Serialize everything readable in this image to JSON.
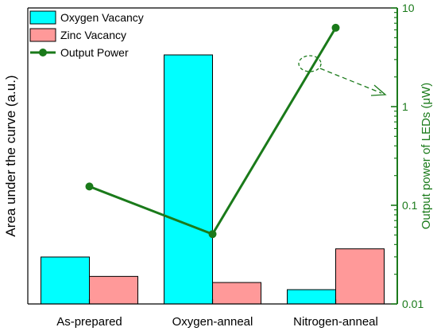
{
  "chart_data": {
    "type": "bar",
    "categories": [
      "As-prepared",
      "Oxygen-anneal",
      "Nitrogen-anneal"
    ],
    "series": [
      {
        "name": "Oxygen Vacancy",
        "kind": "bar",
        "axis": "left",
        "color": "#00ffff",
        "values": [
          0.46,
          2.44,
          0.14
        ]
      },
      {
        "name": "Zinc Vacancy",
        "kind": "bar",
        "axis": "left",
        "color": "#ff9999",
        "values": [
          0.27,
          0.21,
          0.54
        ]
      },
      {
        "name": "Output Power",
        "kind": "line",
        "axis": "right",
        "color": "#1a7a1a",
        "values": [
          0.155,
          0.051,
          6.3
        ]
      }
    ],
    "ylabel": "Area under the curve (a.u.)",
    "ylabel_right": "Output power of LEDs (μW)",
    "y_left_range": [
      0,
      2.9
    ],
    "y_right_scale": "log",
    "y_right_range": [
      0.01,
      10
    ],
    "y_right_ticks": [
      "0.01",
      "0.1",
      "1",
      "10"
    ],
    "legend_position": "top-left",
    "annotation": "dashed ellipse around the Nitrogen-anneal output power point with dashed arrow pointing to the right axis"
  }
}
